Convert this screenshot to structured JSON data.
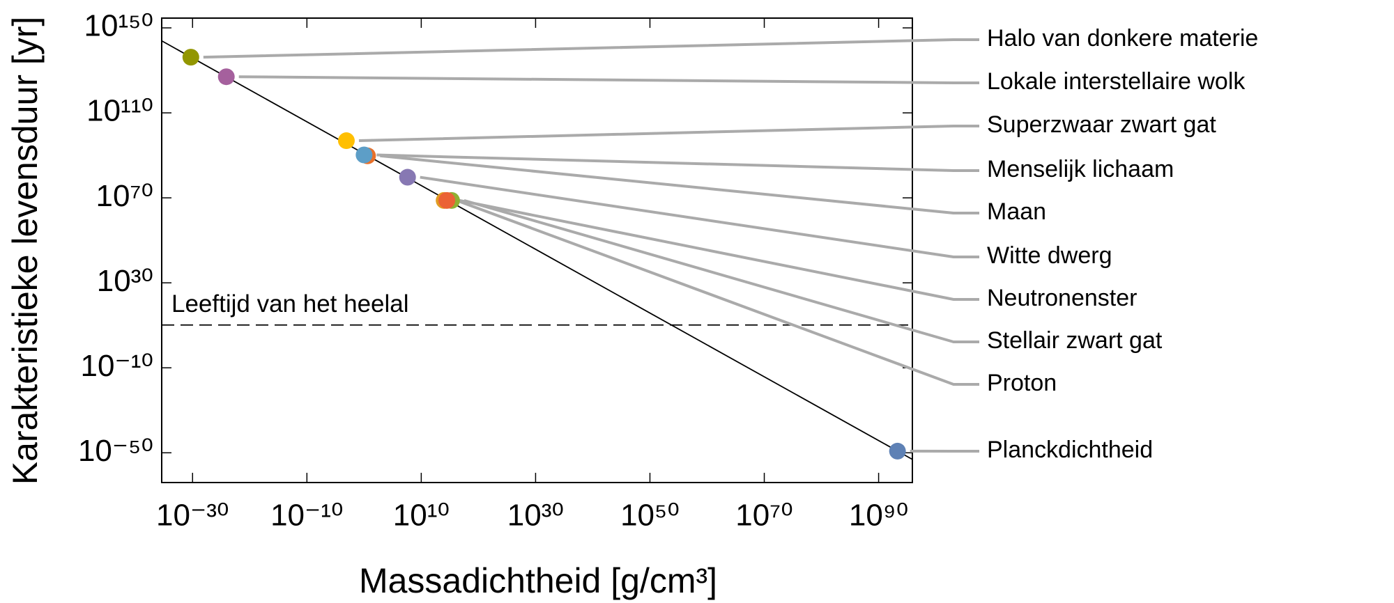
{
  "chart_data": {
    "type": "scatter",
    "x_label": "Massadichtheid [g/cm³]",
    "y_label": "Karakteristieke levensduur [yr]",
    "log_x": true,
    "log_y": true,
    "xlim": [
      4e-36,
      8e+95
    ],
    "ylim": [
      1e-64,
      4e+154
    ],
    "xticks": [
      {
        "value": 1e-30,
        "label": "10⁻³⁰"
      },
      {
        "value": 1e-10,
        "label": "10⁻¹⁰"
      },
      {
        "value": 10000000000.0,
        "label": "10¹⁰"
      },
      {
        "value": 1e+30,
        "label": "10³⁰"
      },
      {
        "value": 1e+50,
        "label": "10⁵⁰"
      },
      {
        "value": 1e+70,
        "label": "10⁷⁰"
      },
      {
        "value": 1e+90,
        "label": "10⁹⁰"
      }
    ],
    "yticks": [
      {
        "value": 1e-50,
        "label": "10⁻⁵⁰"
      },
      {
        "value": 1e-10,
        "label": "10⁻¹⁰"
      },
      {
        "value": 1e+30,
        "label": "10³⁰"
      },
      {
        "value": 1e+70,
        "label": "10⁷⁰"
      },
      {
        "value": 1e+110,
        "label": "10¹¹⁰"
      },
      {
        "value": 1e+150,
        "label": "10¹⁵⁰"
      }
    ],
    "series": [
      {
        "name": "Halo van donkere materie",
        "color": "#929600",
        "x": [
          5e-31
        ],
        "values": [
          1.6e+136
        ]
      },
      {
        "name": "Lokale interstellaire wolk",
        "color": "#A5609D",
        "x": [
          8e-25
        ],
        "values": [
          1e+127
        ]
      },
      {
        "name": "Superzwaar zwart gat",
        "color": "#FFBF00",
        "x": [
          0.0008
        ],
        "values": [
          8e+96
        ]
      },
      {
        "name": "Menselijk lichaam",
        "color": "#5D9EC7",
        "x": [
          1
        ],
        "values": [
          1.6e+90
        ]
      },
      {
        "name": "Maan",
        "color": "#E8702A",
        "x": [
          4
        ],
        "values": [
          6e+89
        ]
      },
      {
        "name": "Witte dwerg",
        "color": "#8778B3",
        "x": [
          40000000.0
        ],
        "values": [
          5e+79
        ]
      },
      {
        "name": "Neutronenster",
        "color": "#EB6235",
        "x": [
          300000000000000.0
        ],
        "values": [
          6e+68
        ]
      },
      {
        "name": "Stellair zwart gat",
        "color": "#8FB032",
        "x": [
          2000000000000000.0
        ],
        "values": [
          6e+68
        ]
      },
      {
        "name": "Proton",
        "color": "#E19C24",
        "x": [
          100000000000000.0
        ],
        "values": [
          6e+68
        ]
      },
      {
        "name": "Planckdichtheid",
        "color": "#5E81B5",
        "x": [
          2e+93
        ],
        "values": [
          6e-50
        ]
      }
    ],
    "reference_line": {
      "x": [
        4e-36,
        8e+95
      ],
      "y": [
        8e+143,
        8e-54
      ]
    },
    "annotation": {
      "text": "Leeftijd van het heelal",
      "value": 13800000000.0
    }
  }
}
